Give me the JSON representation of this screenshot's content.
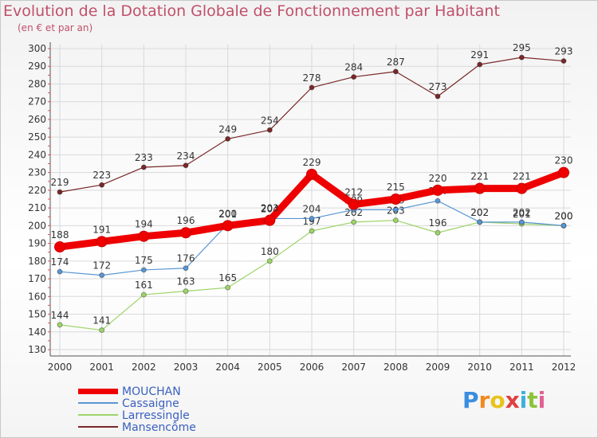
{
  "header": {
    "title": "Evolution de la Dotation Globale de Fonctionnement par Habitant",
    "subtitle": "(en € et par an)"
  },
  "logo": {
    "text": "Proxiti",
    "letter_colors": [
      "#3a8de0",
      "#f08a1c",
      "#e8c31a",
      "#e04040",
      "#3ab0e0",
      "#8ac43a",
      "#e06090"
    ]
  },
  "chart_data": {
    "type": "line",
    "title": "Evolution de la Dotation Globale de Fonctionnement par Habitant",
    "subtitle": "(en € et par an)",
    "xlabel": "",
    "ylabel": "",
    "ylim": [
      130,
      300
    ],
    "yticks": [
      130,
      140,
      150,
      160,
      170,
      180,
      190,
      200,
      210,
      220,
      230,
      240,
      250,
      260,
      270,
      280,
      290,
      300
    ],
    "x": [
      "2000",
      "2001",
      "2002",
      "2003",
      "2004",
      "2005",
      "2006",
      "2007",
      "2008",
      "2009",
      "2010",
      "2011",
      "2012"
    ],
    "grid": true,
    "legend_position": "bottom-left",
    "series": [
      {
        "name": "Mansencôme",
        "color": "#7a2828",
        "values": [
          219,
          223,
          233,
          234,
          249,
          254,
          278,
          284,
          287,
          273,
          291,
          295,
          293
        ]
      },
      {
        "name": "Larressingle",
        "color": "#9ed46a",
        "values": [
          144,
          141,
          161,
          163,
          165,
          180,
          197,
          202,
          203,
          196,
          202,
          201,
          200
        ]
      },
      {
        "name": "Cassaigne",
        "color": "#5a96d2",
        "values": [
          174,
          172,
          175,
          176,
          201,
          204,
          204,
          209,
          209,
          214,
          202,
          202,
          200
        ]
      },
      {
        "name": "MOUCHAN",
        "color": "#ee0000",
        "values": [
          188,
          191,
          194,
          196,
          200,
          203,
          229,
          212,
          215,
          220,
          221,
          221,
          230
        ]
      }
    ],
    "legend": [
      "MOUCHAN",
      "Cassaigne",
      "Larressingle",
      "Mansencôme"
    ]
  }
}
